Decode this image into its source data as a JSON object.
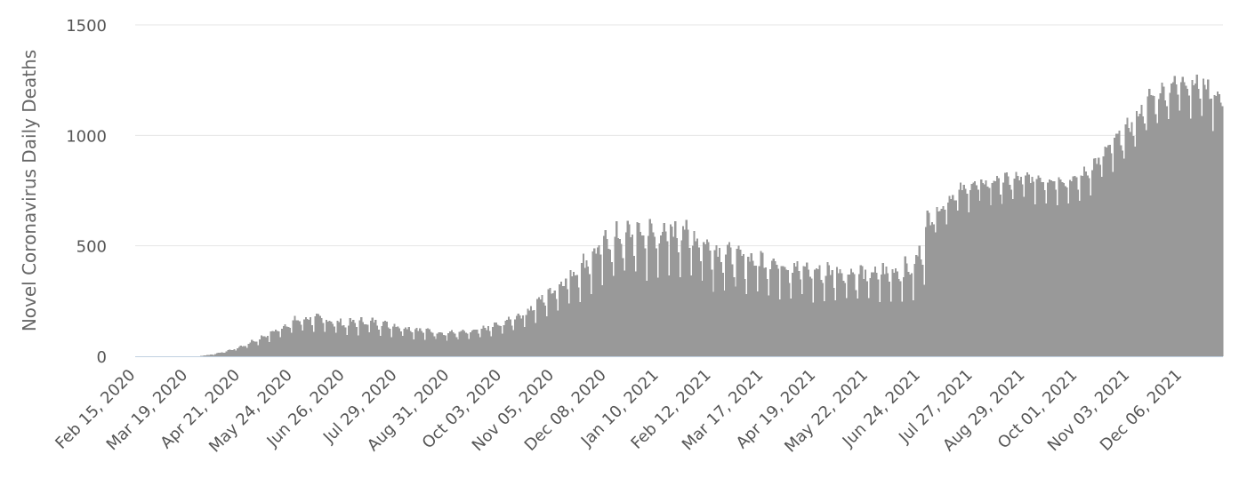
{
  "chart_data": {
    "type": "bar",
    "title": "",
    "xlabel": "",
    "ylabel": "Novel Coronavirus Daily Deaths",
    "ylim": [
      0,
      1500
    ],
    "y_ticks": [
      0,
      500,
      1000,
      1500
    ],
    "x_tick_labels": [
      "Feb 15, 2020",
      "Mar 19, 2020",
      "Apr 21, 2020",
      "May 24, 2020",
      "Jun 26, 2020",
      "Jul 29, 2020",
      "Aug 31, 2020",
      "Oct 03, 2020",
      "Nov 05, 2020",
      "Dec 08, 2020",
      "Jan 10, 2021",
      "Feb 12, 2021",
      "Mar 17, 2021",
      "Apr 19, 2021",
      "May 22, 2021",
      "Jun 24, 2021",
      "Jul 27, 2021",
      "Aug 29, 2021",
      "Oct 01, 2021",
      "Nov 03, 2021",
      "Dec 06, 2021"
    ],
    "start_date": "2020-02-15",
    "end_date": "2021-12-31",
    "grid": true,
    "bar_color": "#999999",
    "gridline_color": "#e6e6e6",
    "axis_line_color": "#c0d0e0",
    "series": [
      {
        "name": "",
        "trend_points": [
          [
            "2020-02-15",
            0
          ],
          [
            "2020-03-25",
            0
          ],
          [
            "2020-04-05",
            10
          ],
          [
            "2020-04-21",
            40
          ],
          [
            "2020-05-10",
            100
          ],
          [
            "2020-05-24",
            150
          ],
          [
            "2020-06-05",
            165
          ],
          [
            "2020-06-26",
            140
          ],
          [
            "2020-07-10",
            150
          ],
          [
            "2020-07-29",
            130
          ],
          [
            "2020-08-15",
            110
          ],
          [
            "2020-08-31",
            100
          ],
          [
            "2020-09-15",
            105
          ],
          [
            "2020-10-03",
            140
          ],
          [
            "2020-10-20",
            200
          ],
          [
            "2020-11-05",
            290
          ],
          [
            "2020-11-20",
            370
          ],
          [
            "2020-12-08",
            490
          ],
          [
            "2020-12-25",
            530
          ],
          [
            "2021-01-10",
            520
          ],
          [
            "2021-01-25",
            540
          ],
          [
            "2021-02-12",
            460
          ],
          [
            "2021-03-01",
            420
          ],
          [
            "2021-03-17",
            410
          ],
          [
            "2021-04-01",
            390
          ],
          [
            "2021-04-19",
            360
          ],
          [
            "2021-05-05",
            365
          ],
          [
            "2021-05-22",
            350
          ],
          [
            "2021-06-08",
            365
          ],
          [
            "2021-06-20",
            380
          ],
          [
            "2021-06-24",
            460
          ],
          [
            "2021-07-01",
            620
          ],
          [
            "2021-07-15",
            720
          ],
          [
            "2021-07-27",
            760
          ],
          [
            "2021-08-15",
            780
          ],
          [
            "2021-08-29",
            790
          ],
          [
            "2021-09-15",
            785
          ],
          [
            "2021-10-01",
            780
          ],
          [
            "2021-10-15",
            880
          ],
          [
            "2021-11-03",
            1020
          ],
          [
            "2021-11-15",
            1140
          ],
          [
            "2021-12-06",
            1230
          ],
          [
            "2021-12-20",
            1200
          ],
          [
            "2021-12-31",
            1135
          ]
        ]
      }
    ]
  }
}
